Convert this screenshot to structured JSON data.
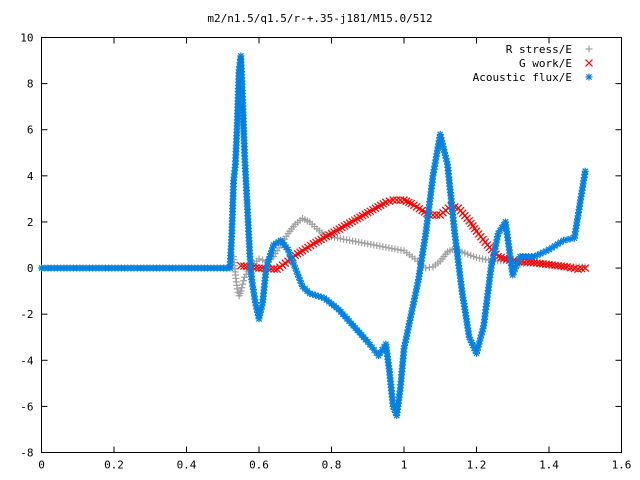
{
  "chart_data": {
    "type": "scatter",
    "title": "m2/n1.5/q1.5/r-+.35-j181/M15.0/512",
    "xlabel": "",
    "ylabel": "",
    "xlim": [
      0,
      1.6
    ],
    "ylim": [
      -8,
      10
    ],
    "x_ticks": [
      "0",
      "0.2",
      "0.4",
      "0.6",
      "0.8",
      "1",
      "1.2",
      "1.4",
      "1.6"
    ],
    "y_ticks": [
      "-8",
      "-6",
      "-4",
      "-2",
      "0",
      "2",
      "4",
      "6",
      "8",
      "10"
    ],
    "x_tick_values": [
      0,
      0.2,
      0.4,
      0.6,
      0.8,
      1.0,
      1.2,
      1.4,
      1.6
    ],
    "y_tick_values": [
      -8,
      -6,
      -4,
      -2,
      0,
      2,
      4,
      6,
      8,
      10
    ],
    "grid": false,
    "legend_position": "top-right",
    "series": [
      {
        "name": "R stress/E",
        "marker": "plus",
        "color": "#a0a0a0",
        "points": [
          [
            0.53,
            0.5
          ],
          [
            0.535,
            -0.3
          ],
          [
            0.54,
            -0.9
          ],
          [
            0.545,
            -1.2
          ],
          [
            0.55,
            -1.0
          ],
          [
            0.56,
            -0.4
          ],
          [
            0.58,
            0.1
          ],
          [
            0.6,
            0.4
          ],
          [
            0.62,
            0.3
          ],
          [
            0.64,
            0.5
          ],
          [
            0.66,
            1.0
          ],
          [
            0.68,
            1.5
          ],
          [
            0.7,
            1.9
          ],
          [
            0.72,
            2.15
          ],
          [
            0.74,
            2.0
          ],
          [
            0.76,
            1.7
          ],
          [
            0.78,
            1.45
          ],
          [
            0.8,
            1.35
          ],
          [
            0.85,
            1.2
          ],
          [
            0.9,
            1.05
          ],
          [
            0.95,
            0.9
          ],
          [
            1.0,
            0.75
          ],
          [
            1.03,
            0.4
          ],
          [
            1.06,
            0.0
          ],
          [
            1.08,
            0.05
          ],
          [
            1.1,
            0.3
          ],
          [
            1.12,
            0.7
          ],
          [
            1.14,
            0.85
          ],
          [
            1.16,
            0.7
          ],
          [
            1.2,
            0.45
          ],
          [
            1.25,
            0.3
          ],
          [
            1.3,
            0.35
          ],
          [
            1.32,
            0.15
          ],
          [
            1.35,
            0.25
          ],
          [
            1.4,
            0.15
          ],
          [
            1.45,
            0.05
          ],
          [
            1.5,
            0.05
          ]
        ]
      },
      {
        "name": "G work/E",
        "marker": "cross",
        "color": "#ff0000",
        "points": [
          [
            0.55,
            0.1
          ],
          [
            0.6,
            0.0
          ],
          [
            0.65,
            -0.05
          ],
          [
            0.68,
            0.3
          ],
          [
            0.7,
            0.55
          ],
          [
            0.72,
            0.75
          ],
          [
            0.75,
            1.05
          ],
          [
            0.8,
            1.5
          ],
          [
            0.85,
            1.95
          ],
          [
            0.9,
            2.4
          ],
          [
            0.95,
            2.85
          ],
          [
            0.97,
            2.95
          ],
          [
            1.0,
            2.95
          ],
          [
            1.02,
            2.8
          ],
          [
            1.05,
            2.5
          ],
          [
            1.07,
            2.3
          ],
          [
            1.1,
            2.3
          ],
          [
            1.13,
            2.7
          ],
          [
            1.15,
            2.6
          ],
          [
            1.18,
            2.05
          ],
          [
            1.2,
            1.6
          ],
          [
            1.23,
            1.0
          ],
          [
            1.26,
            0.5
          ],
          [
            1.3,
            0.3
          ],
          [
            1.35,
            0.25
          ],
          [
            1.4,
            0.15
          ],
          [
            1.45,
            0.05
          ],
          [
            1.48,
            -0.05
          ],
          [
            1.5,
            0.0
          ]
        ]
      },
      {
        "name": "Acoustic flux/E",
        "marker": "star",
        "color": "#0080e0",
        "points": [
          [
            0.0,
            0.0
          ],
          [
            0.52,
            0.0
          ],
          [
            0.525,
            1.5
          ],
          [
            0.53,
            3.8
          ],
          [
            0.535,
            4.5
          ],
          [
            0.54,
            6.3
          ],
          [
            0.545,
            8.6
          ],
          [
            0.55,
            9.2
          ],
          [
            0.555,
            7.3
          ],
          [
            0.56,
            5.0
          ],
          [
            0.565,
            3.5
          ],
          [
            0.57,
            2.0
          ],
          [
            0.575,
            0.5
          ],
          [
            0.58,
            -0.5
          ],
          [
            0.59,
            -1.5
          ],
          [
            0.6,
            -2.2
          ],
          [
            0.61,
            -1.5
          ],
          [
            0.62,
            0.0
          ],
          [
            0.64,
            1.0
          ],
          [
            0.66,
            1.2
          ],
          [
            0.68,
            0.8
          ],
          [
            0.7,
            0.0
          ],
          [
            0.72,
            -0.8
          ],
          [
            0.74,
            -1.1
          ],
          [
            0.78,
            -1.3
          ],
          [
            0.82,
            -1.8
          ],
          [
            0.86,
            -2.5
          ],
          [
            0.9,
            -3.2
          ],
          [
            0.93,
            -3.8
          ],
          [
            0.95,
            -3.3
          ],
          [
            0.96,
            -4.5
          ],
          [
            0.97,
            -6.0
          ],
          [
            0.98,
            -6.4
          ],
          [
            0.99,
            -5.2
          ],
          [
            1.0,
            -3.5
          ],
          [
            1.02,
            -2.0
          ],
          [
            1.04,
            -0.5
          ],
          [
            1.06,
            1.5
          ],
          [
            1.08,
            4.0
          ],
          [
            1.1,
            5.8
          ],
          [
            1.12,
            4.5
          ],
          [
            1.14,
            1.5
          ],
          [
            1.16,
            -1.0
          ],
          [
            1.18,
            -3.0
          ],
          [
            1.2,
            -3.7
          ],
          [
            1.22,
            -2.5
          ],
          [
            1.24,
            0.0
          ],
          [
            1.26,
            1.5
          ],
          [
            1.28,
            2.0
          ],
          [
            1.3,
            -0.3
          ],
          [
            1.32,
            0.5
          ],
          [
            1.36,
            0.5
          ],
          [
            1.4,
            0.8
          ],
          [
            1.44,
            1.2
          ],
          [
            1.47,
            1.3
          ],
          [
            1.5,
            4.2
          ]
        ]
      }
    ]
  }
}
